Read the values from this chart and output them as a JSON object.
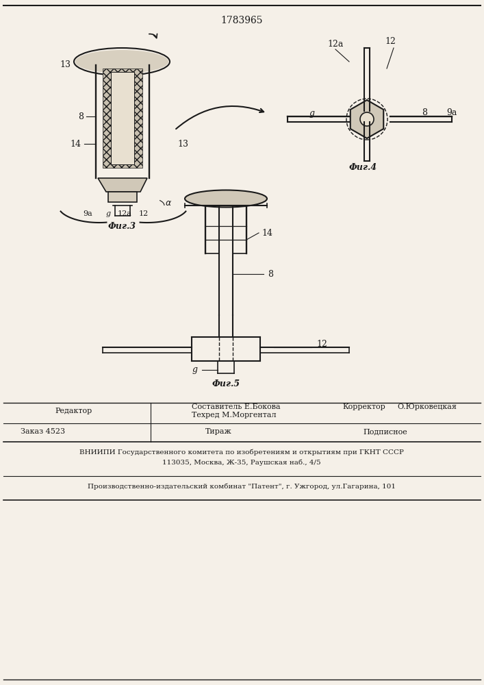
{
  "patent_number": "1783965",
  "fig3_label": "Фиг.3",
  "fig4_label": "Фиг.4",
  "fig5_label": "Фиг.5",
  "footer_editor": "Редактор",
  "footer_composer": "Составитель Е.Бокова",
  "footer_techred": "Техред М.Моргентал",
  "footer_corrector_label": "Корректор",
  "footer_corrector": "О.Юрковецкая",
  "footer_order": "Заказ 4523",
  "footer_tirazh": "Тираж",
  "footer_podpisnoe": "Подписное",
  "footer_vnipi": "ВНИИПИ Государственного комитета по изобретениям и открытиям при ГКНТ СССР",
  "footer_address": "113035, Москва, Ж-35, Раушская наб., 4/5",
  "footer_plant": "Производственно-издательский комбинат \"Патент\", г. Ужгород, ул.Гагарина, 101",
  "bg_color": "#f5f0e8",
  "line_color": "#1a1a1a"
}
